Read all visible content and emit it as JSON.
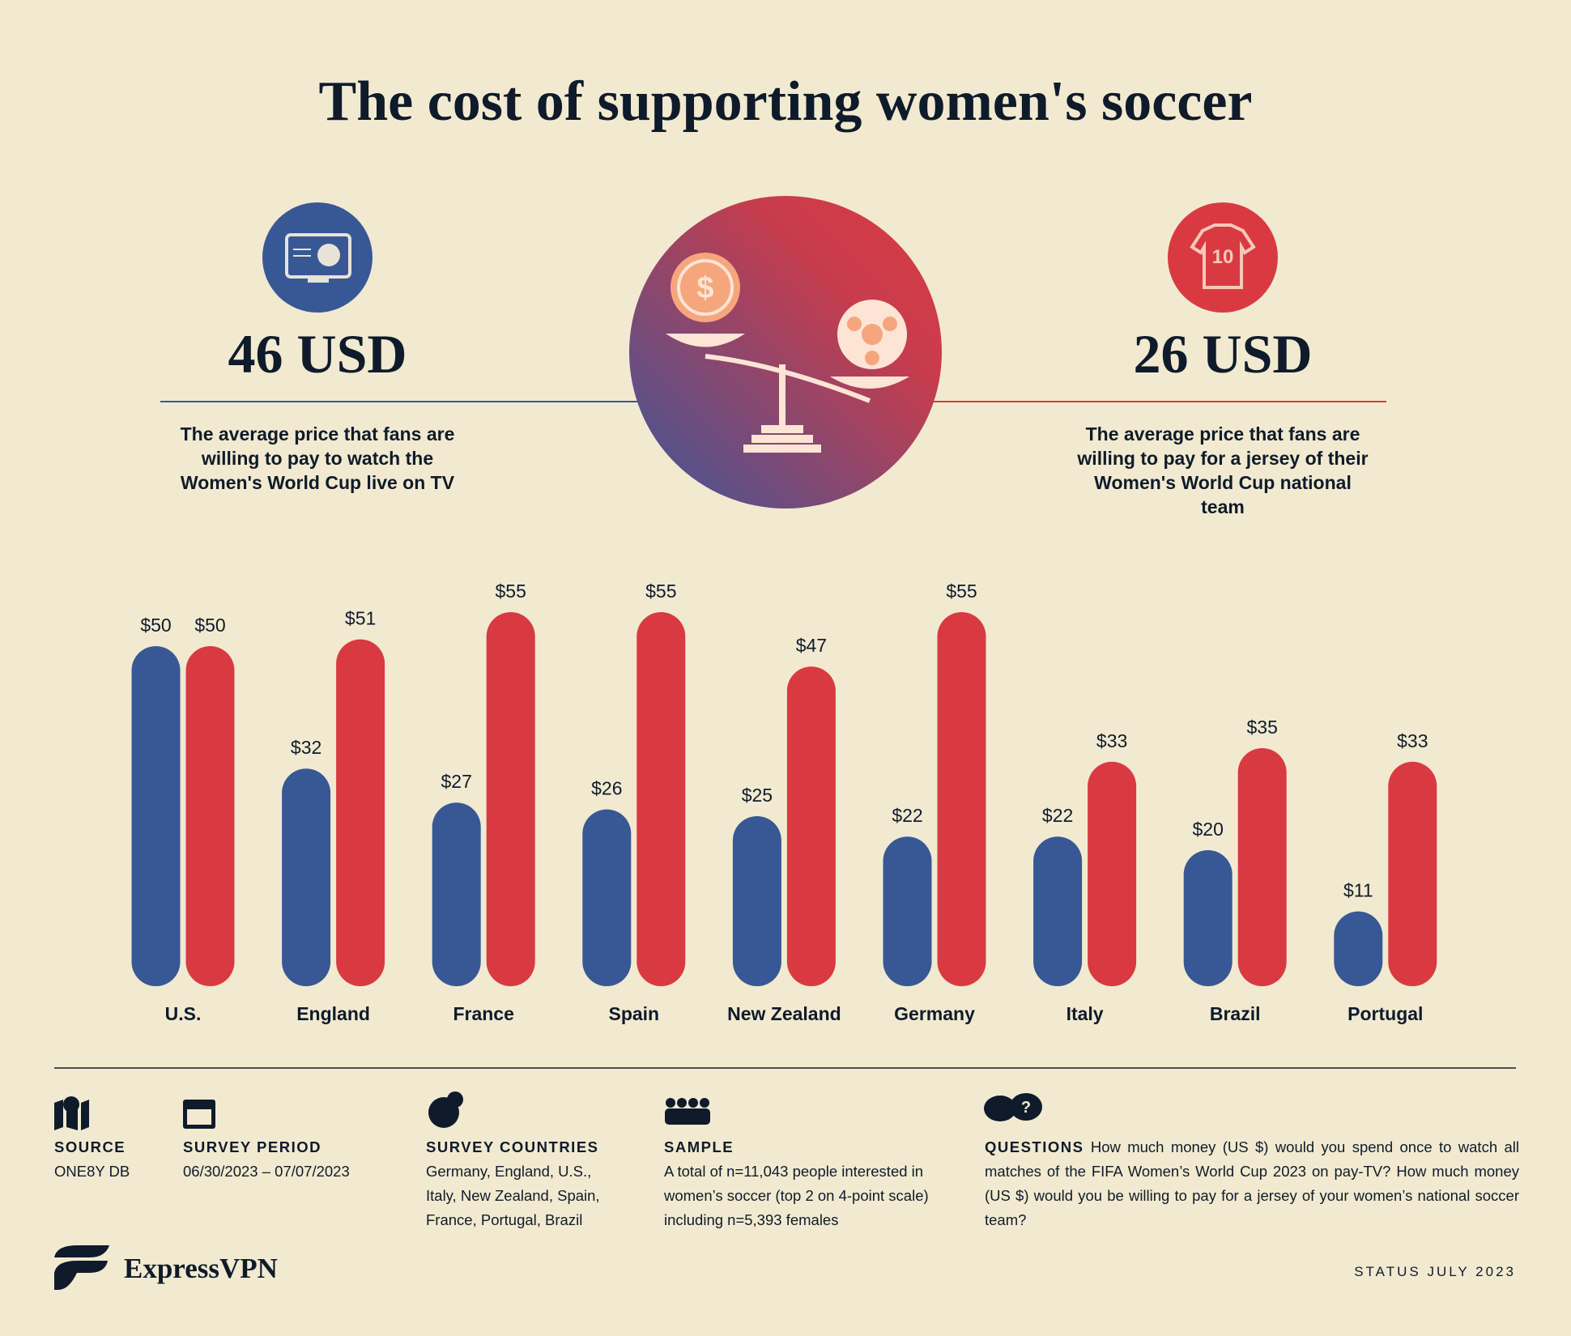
{
  "title": "The cost of supporting women's soccer",
  "stats": [
    {
      "value": "46 USD",
      "description": [
        "The average price that fans are",
        "willing to pay to watch the",
        "Women's World Cup live on TV"
      ]
    },
    {
      "value": "26 USD",
      "description": [
        "The average price that fans are",
        "willing to pay for a jersey of their",
        "Women's World Cup national",
        "team"
      ]
    }
  ],
  "chart_data": {
    "type": "bar",
    "categories": [
      "U.S.",
      "England",
      "France",
      "Spain",
      "New Zealand",
      "Germany",
      "Italy",
      "Brazil",
      "Portugal"
    ],
    "series": [
      {
        "color": "#385895",
        "values": [
          50,
          32,
          27,
          26,
          25,
          22,
          22,
          20,
          11
        ],
        "value_labels": [
          "$50",
          "$32",
          "$27",
          "$26",
          "$25",
          "$22",
          "$22",
          "$20",
          "$11"
        ]
      },
      {
        "color": "#d93a41",
        "values": [
          50,
          51,
          55,
          55,
          47,
          55,
          33,
          35,
          33
        ],
        "value_labels": [
          "$50",
          "$51",
          "$55",
          "$55",
          "$47",
          "$55",
          "$33",
          "$35",
          "$33"
        ]
      }
    ]
  },
  "footer": {
    "source": {
      "label": "SOURCE",
      "text": "ONE8Y DB"
    },
    "period": {
      "label": "SURVEY PERIOD",
      "text": "06/30/2023 – 07/07/2023"
    },
    "countries": {
      "label": "SURVEY COUNTRIES",
      "text": "Germany, England, U.S., Italy, New Zealand, Spain, France, Portugal, Brazil"
    },
    "sample": {
      "label": "SAMPLE",
      "text": "A total of n=11,043 people interested in women’s soccer (top 2 on 4-point scale) including n=5,393 females"
    },
    "questions": {
      "label": "QUESTIONS",
      "text": "How much money (US $) would you spend once to watch all matches of the FIFA Women’s World Cup 2023 on pay-TV? How much money (US $) would you be willing to pay for a jersey of your women’s national soccer team?"
    }
  },
  "brand": "ExpressVPN",
  "status": "STATUS JULY 2023"
}
